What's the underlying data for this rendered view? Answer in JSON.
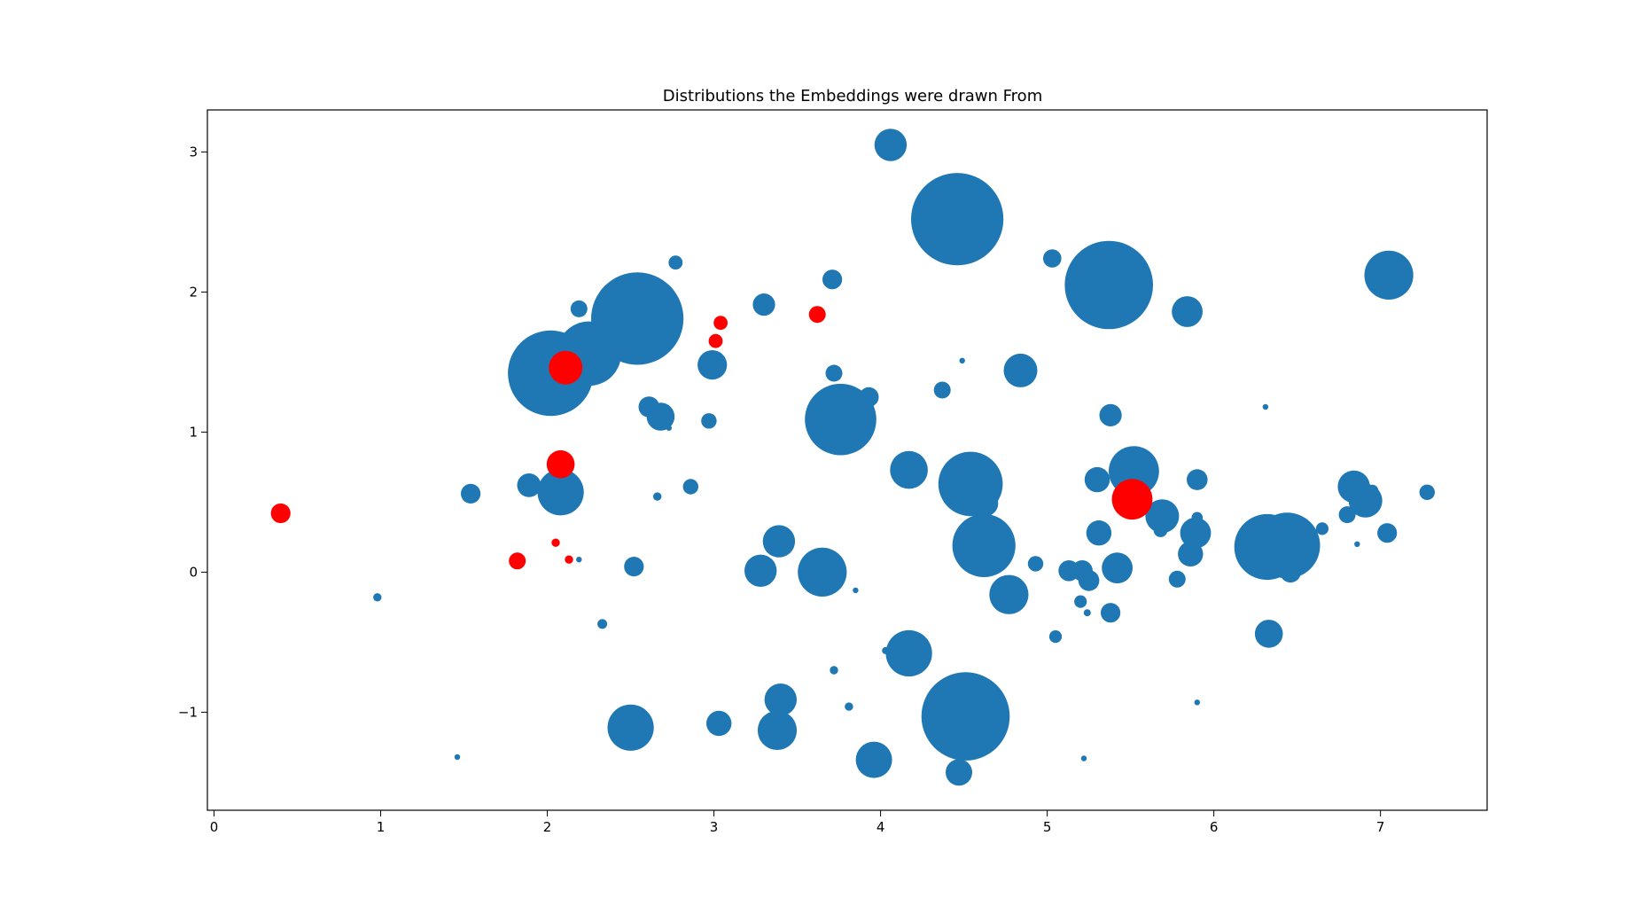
{
  "chart_data": {
    "type": "scatter",
    "title": "Distributions the Embeddings were drawn From",
    "xlabel": "",
    "ylabel": "",
    "xlim": [
      -0.04,
      7.64
    ],
    "ylim": [
      -1.7,
      3.3
    ],
    "xticks": [
      0,
      1,
      2,
      3,
      4,
      5,
      6,
      7
    ],
    "yticks": [
      -1,
      0,
      1,
      2,
      3
    ],
    "ytick_labels": [
      "−1",
      "0",
      "1",
      "2",
      "3"
    ],
    "grid": false,
    "legend": "none",
    "colors": {
      "blue": "#1f77b4",
      "red": "#ff0000"
    },
    "series": [
      {
        "name": "blue",
        "color": "#1f77b4",
        "points": [
          [
            4.06,
            3.05,
            0.23
          ],
          [
            4.46,
            2.52,
            0.66
          ],
          [
            5.37,
            2.05,
            0.63
          ],
          [
            7.05,
            2.12,
            0.35
          ],
          [
            5.03,
            2.24,
            0.13
          ],
          [
            5.84,
            1.86,
            0.22
          ],
          [
            2.77,
            2.21,
            0.1
          ],
          [
            3.71,
            2.09,
            0.14
          ],
          [
            3.3,
            1.91,
            0.16
          ],
          [
            2.54,
            1.81,
            0.66
          ],
          [
            2.19,
            1.88,
            0.12
          ],
          [
            2.25,
            1.56,
            0.46
          ],
          [
            2.02,
            1.42,
            0.61
          ],
          [
            2.99,
            1.48,
            0.21
          ],
          [
            3.72,
            1.42,
            0.12
          ],
          [
            4.49,
            1.51,
            0.04
          ],
          [
            4.84,
            1.44,
            0.24
          ],
          [
            4.37,
            1.3,
            0.12
          ],
          [
            3.93,
            1.25,
            0.14
          ],
          [
            2.61,
            1.18,
            0.15
          ],
          [
            2.68,
            1.11,
            0.2
          ],
          [
            2.73,
            1.03,
            0.04
          ],
          [
            2.97,
            1.08,
            0.11
          ],
          [
            3.76,
            1.09,
            0.51
          ],
          [
            5.38,
            1.12,
            0.16
          ],
          [
            6.31,
            1.18,
            0.04
          ],
          [
            4.17,
            0.73,
            0.27
          ],
          [
            4.5,
            0.72,
            0.18
          ],
          [
            4.54,
            0.63,
            0.46
          ],
          [
            5.52,
            0.72,
            0.36
          ],
          [
            5.3,
            0.66,
            0.18
          ],
          [
            5.9,
            0.66,
            0.15
          ],
          [
            6.84,
            0.61,
            0.23
          ],
          [
            6.91,
            0.51,
            0.24
          ],
          [
            6.95,
            0.58,
            0.09
          ],
          [
            7.28,
            0.57,
            0.11
          ],
          [
            6.8,
            0.41,
            0.12
          ],
          [
            6.65,
            0.31,
            0.09
          ],
          [
            6.86,
            0.2,
            0.04
          ],
          [
            7.04,
            0.28,
            0.14
          ],
          [
            1.54,
            0.56,
            0.14
          ],
          [
            1.89,
            0.62,
            0.17
          ],
          [
            2.08,
            0.57,
            0.33
          ],
          [
            2.66,
            0.54,
            0.06
          ],
          [
            2.86,
            0.61,
            0.11
          ],
          [
            4.63,
            0.49,
            0.18
          ],
          [
            4.62,
            0.19,
            0.45
          ],
          [
            5.69,
            0.4,
            0.24
          ],
          [
            5.68,
            0.3,
            0.1
          ],
          [
            5.89,
            0.28,
            0.22
          ],
          [
            5.9,
            0.39,
            0.08
          ],
          [
            5.86,
            0.13,
            0.18
          ],
          [
            5.31,
            0.28,
            0.18
          ],
          [
            6.32,
            0.18,
            0.47
          ],
          [
            6.44,
            0.19,
            0.47
          ],
          [
            6.46,
            0.0,
            0.15
          ],
          [
            2.19,
            0.09,
            0.04
          ],
          [
            2.52,
            0.04,
            0.14
          ],
          [
            3.39,
            0.22,
            0.23
          ],
          [
            3.28,
            0.01,
            0.23
          ],
          [
            3.65,
            0.0,
            0.35
          ],
          [
            3.85,
            -0.13,
            0.04
          ],
          [
            4.93,
            0.06,
            0.11
          ],
          [
            5.13,
            0.01,
            0.15
          ],
          [
            5.21,
            0.01,
            0.15
          ],
          [
            5.25,
            -0.06,
            0.15
          ],
          [
            5.42,
            0.03,
            0.22
          ],
          [
            5.78,
            -0.05,
            0.12
          ],
          [
            0.98,
            -0.18,
            0.06
          ],
          [
            2.33,
            -0.37,
            0.07
          ],
          [
            4.77,
            -0.16,
            0.28
          ],
          [
            5.2,
            -0.21,
            0.09
          ],
          [
            5.24,
            -0.29,
            0.05
          ],
          [
            5.38,
            -0.29,
            0.14
          ],
          [
            5.05,
            -0.46,
            0.09
          ],
          [
            6.33,
            -0.44,
            0.2
          ],
          [
            4.03,
            -0.56,
            0.05
          ],
          [
            4.17,
            -0.58,
            0.33
          ],
          [
            3.72,
            -0.7,
            0.06
          ],
          [
            3.4,
            -0.91,
            0.23
          ],
          [
            3.81,
            -0.96,
            0.06
          ],
          [
            5.9,
            -0.93,
            0.04
          ],
          [
            4.51,
            -1.03,
            0.63
          ],
          [
            2.5,
            -1.11,
            0.33
          ],
          [
            3.03,
            -1.08,
            0.18
          ],
          [
            3.38,
            -1.13,
            0.28
          ],
          [
            1.46,
            -1.32,
            0.04
          ],
          [
            3.96,
            -1.34,
            0.26
          ],
          [
            4.47,
            -1.43,
            0.19
          ],
          [
            5.22,
            -1.33,
            0.04
          ]
        ]
      },
      {
        "name": "red",
        "color": "#ff0000",
        "points": [
          [
            0.4,
            0.42,
            0.14
          ],
          [
            2.08,
            0.77,
            0.2
          ],
          [
            2.11,
            1.46,
            0.24
          ],
          [
            3.01,
            1.65,
            0.1
          ],
          [
            3.04,
            1.78,
            0.1
          ],
          [
            3.62,
            1.84,
            0.12
          ],
          [
            2.05,
            0.21,
            0.06
          ],
          [
            2.13,
            0.09,
            0.06
          ],
          [
            1.82,
            0.08,
            0.12
          ],
          [
            5.51,
            0.52,
            0.29
          ]
        ]
      }
    ]
  }
}
